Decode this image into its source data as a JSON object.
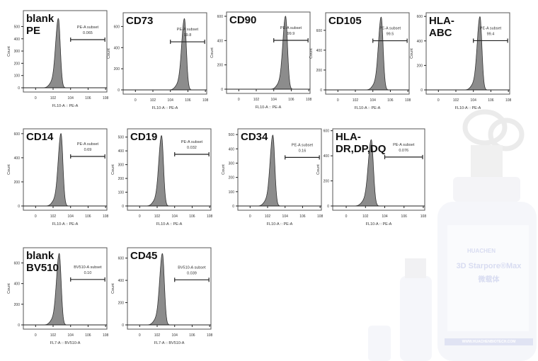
{
  "colors": {
    "fill": "#8c8c8c",
    "stroke": "#333333",
    "box": "#555555"
  },
  "chart_data": [
    {
      "type": "area",
      "title": "blank\nPE",
      "xlabel": "FL10-A :: PE-A",
      "ylabel": "Count",
      "xticks": [
        "0",
        "10^2",
        "10^4",
        "10^6",
        "10^8"
      ],
      "yticks": [
        0,
        100,
        200,
        300,
        400,
        500
      ],
      "ylim": [
        0,
        630
      ],
      "peak_log": 2.6,
      "peak_count": 565,
      "gate": {
        "name": "PE-A subset",
        "value": "0.065",
        "from_log": 4,
        "to_log": 8,
        "count": 393
      }
    },
    {
      "type": "area",
      "title": "CD73",
      "xlabel": "FL10-A :: PE-A",
      "ylabel": "Count",
      "xticks": [
        "0",
        "10^2",
        "10^4",
        "10^6",
        "10^8"
      ],
      "yticks": [
        0,
        200,
        400,
        600
      ],
      "ylim": [
        0,
        730
      ],
      "peak_log": 5.6,
      "peak_count": 673,
      "gate": {
        "name": "PE-A subset",
        "value": "99.8",
        "from_log": 4,
        "to_log": 8,
        "count": 455
      }
    },
    {
      "type": "area",
      "title": "CD90",
      "xlabel": "FL10-A :: PE-A",
      "ylabel": "Count",
      "xticks": [
        "0",
        "10^2",
        "10^4",
        "10^6",
        "10^8"
      ],
      "yticks": [
        0,
        200,
        400,
        600
      ],
      "ylim": [
        0,
        635
      ],
      "peak_log": 5.35,
      "peak_count": 600,
      "gate": {
        "name": "PE-A subset",
        "value": "99.9",
        "from_log": 4,
        "to_log": 8,
        "count": 402
      }
    },
    {
      "type": "area",
      "title": "CD105",
      "xlabel": "FL10-A :: PE-A",
      "ylabel": "Count",
      "xticks": [
        "0",
        "10^2",
        "10^4",
        "10^6",
        "10^8"
      ],
      "yticks": [
        0,
        200,
        400,
        600
      ],
      "ylim": [
        0,
        777
      ],
      "peak_log": 4.95,
      "peak_count": 732,
      "gate": {
        "name": "PE-A subset",
        "value": "99.5",
        "from_log": 4,
        "to_log": 8,
        "count": 495
      }
    },
    {
      "type": "area",
      "title": "HLA-\nABC",
      "xlabel": "FL10-A :: PE-A",
      "ylabel": "Count",
      "xticks": [
        "0",
        "10^2",
        "10^4",
        "10^6",
        "10^8"
      ],
      "yticks": [
        0,
        200,
        400,
        600
      ],
      "ylim": [
        0,
        630
      ],
      "peak_log": 4.75,
      "peak_count": 597,
      "gate": {
        "name": "PE-A subset",
        "value": "99.4",
        "from_log": 4,
        "to_log": 8,
        "count": 402
      }
    },
    {
      "type": "area",
      "title": "CD14",
      "xlabel": "FL10-A :: PE-A",
      "ylabel": "Count",
      "xticks": [
        "0",
        "10^2",
        "10^4",
        "10^6",
        "10^8"
      ],
      "yticks": [
        0,
        200,
        400,
        600
      ],
      "ylim": [
        0,
        640
      ],
      "peak_log": 2.9,
      "peak_count": 600,
      "gate": {
        "name": "PE-A subset",
        "value": "0.69",
        "from_log": 4,
        "to_log": 8,
        "count": 411
      }
    },
    {
      "type": "area",
      "title": "CD19",
      "xlabel": "FL10-A :: PE-A",
      "ylabel": "Count",
      "xticks": [
        "0",
        "10^2",
        "10^4",
        "10^6",
        "10^8"
      ],
      "yticks": [
        0,
        100,
        200,
        300,
        400,
        500
      ],
      "ylim": [
        0,
        560
      ],
      "peak_log": 2.5,
      "peak_count": 510,
      "gate": {
        "name": "PE-A subset",
        "value": "0.032",
        "from_log": 4,
        "to_log": 8,
        "count": 375
      }
    },
    {
      "type": "area",
      "title": "CD34",
      "xlabel": "FL10-A :: PE-A",
      "ylabel": "Count",
      "xticks": [
        "0",
        "10^2",
        "10^4",
        "10^6",
        "10^8"
      ],
      "yticks": [
        0,
        100,
        200,
        300,
        400,
        500
      ],
      "ylim": [
        0,
        540
      ],
      "peak_log": 2.6,
      "peak_count": 495,
      "gate": {
        "name": "PE-A subset",
        "value": "0.16",
        "from_log": 4,
        "to_log": 8,
        "count": 340
      }
    },
    {
      "type": "area",
      "title": "HLA-\nDR,DP,DQ",
      "xlabel": "FL10-A :: PE-A",
      "ylabel": "Count",
      "xticks": [
        "0",
        "10^2",
        "10^4",
        "10^6",
        "10^8"
      ],
      "yticks": [
        0,
        200,
        400,
        600
      ],
      "ylim": [
        0,
        615
      ],
      "peak_log": 2.6,
      "peak_count": 527,
      "gate": {
        "name": "PE-A subset",
        "value": "0.076",
        "from_log": 4,
        "to_log": 8,
        "count": 390
      }
    },
    {
      "type": "area",
      "title": "blank\nBV510",
      "xlabel": "FL7-A :: BV510-A",
      "ylabel": "Count",
      "xticks": [
        "0",
        "10^2",
        "10^4",
        "10^6",
        "10^8"
      ],
      "yticks": [
        0,
        200,
        400,
        600
      ],
      "ylim": [
        0,
        747
      ],
      "peak_log": 2.7,
      "peak_count": 690,
      "gate": {
        "name": "BV510-A subset",
        "value": "0.10",
        "from_log": 4,
        "to_log": 8,
        "count": 440
      }
    },
    {
      "type": "area",
      "title": "CD45",
      "xlabel": "FL7-A :: BV510-A",
      "ylabel": "Count",
      "xticks": [
        "0",
        "10^2",
        "10^4",
        "10^6",
        "10^8"
      ],
      "yticks": [
        0,
        200,
        400,
        600
      ],
      "ylim": [
        0,
        693
      ],
      "peak_log": 2.6,
      "peak_count": 640,
      "gate": {
        "name": "BV510-A subset",
        "value": "0.039",
        "from_log": 4,
        "to_log": 8,
        "count": 405
      }
    }
  ],
  "product": {
    "brand": "HUACHEN",
    "name": "3D Starpore®Max",
    "name_cn": "微载体",
    "website": "WWW.HUACHENBIOTECH.COM"
  }
}
